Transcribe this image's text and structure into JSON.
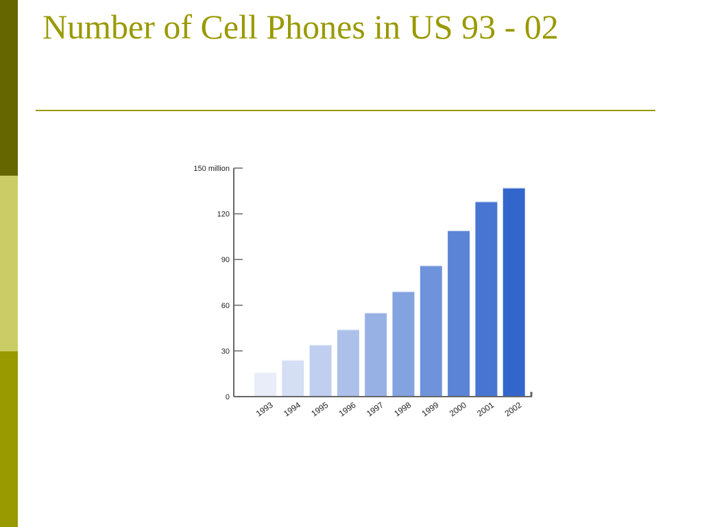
{
  "slide": {
    "title": "Number of Cell Phones in US 93 - 02"
  },
  "colors": {
    "band_top": "#666600",
    "band_mid": "#cccc66",
    "band_bottom": "#999900",
    "title": "#999900",
    "bar_light": "#e8edf9",
    "bar_dark": "#3366cc"
  },
  "chart_data": {
    "type": "bar",
    "categories": [
      "1993",
      "1994",
      "1995",
      "1996",
      "1997",
      "1998",
      "1999",
      "2000",
      "2001",
      "2002"
    ],
    "values": [
      16,
      24,
      34,
      44,
      55,
      69,
      86,
      109,
      128,
      137
    ],
    "ylim": [
      0,
      150
    ],
    "yticks": [
      0,
      30,
      60,
      90,
      120,
      150
    ],
    "ytick_labels": [
      "0",
      "30",
      "60",
      "90",
      "120",
      "150 million"
    ],
    "grid": false,
    "legend": "none"
  }
}
